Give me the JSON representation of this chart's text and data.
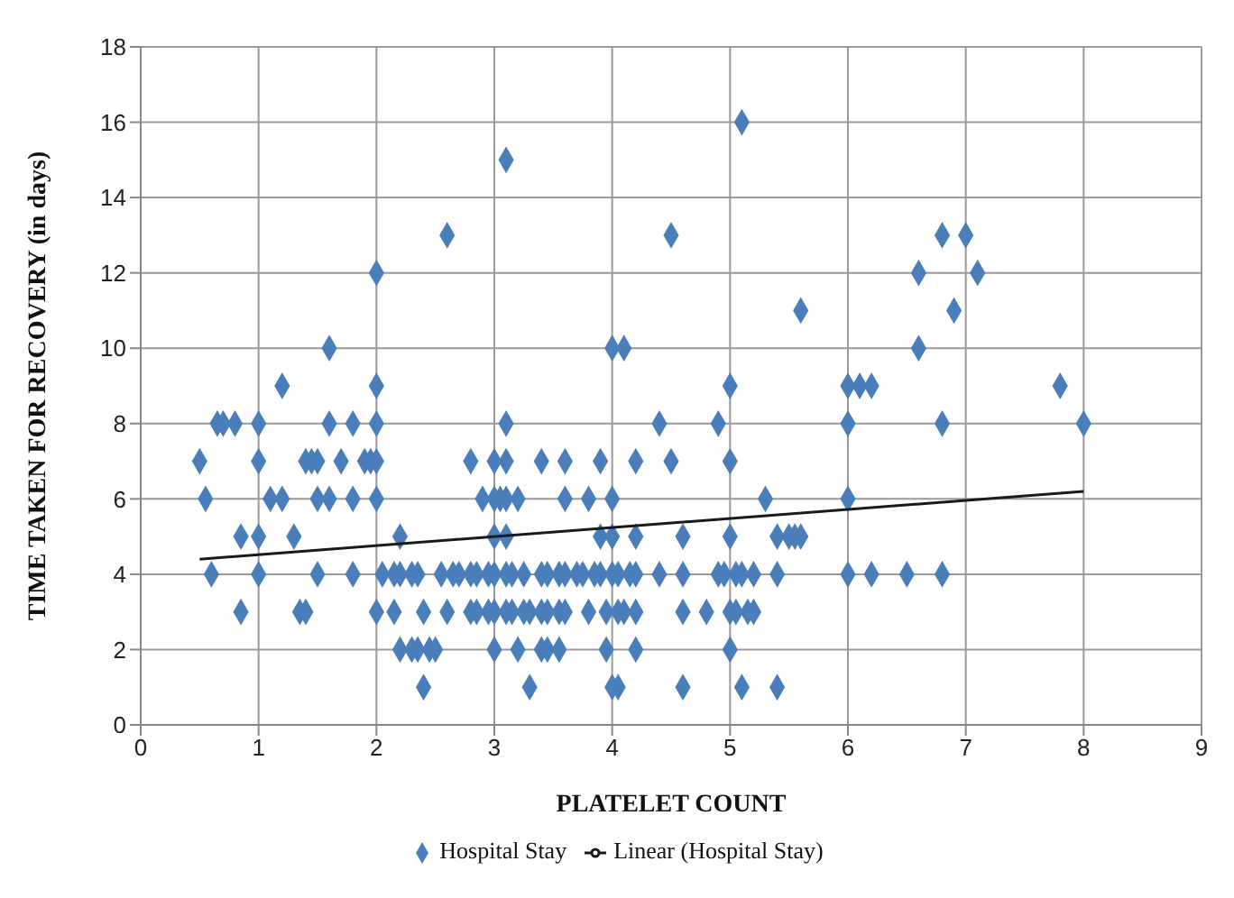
{
  "chart_data": {
    "type": "scatter",
    "xlabel": "PLATELET COUNT",
    "ylabel": "TIME TAKEN FOR RECOVERY  (in days)",
    "xlim": [
      0,
      9
    ],
    "xticks": [
      0,
      1,
      2,
      3,
      4,
      5,
      6,
      7,
      8,
      9
    ],
    "ylim": [
      0,
      18
    ],
    "yticks": [
      0,
      2,
      4,
      6,
      8,
      10,
      12,
      14,
      16,
      18
    ],
    "grid": true,
    "legend": "bottom",
    "series": [
      {
        "name": "Hospital Stay",
        "marker": "diamond",
        "color": "#4a7ebb",
        "x": [
          5.1,
          3.1,
          2.6,
          4.5,
          6.8,
          7.0,
          2.0,
          6.6,
          7.1,
          5.6,
          6.9,
          1.6,
          4.0,
          4.1,
          6.6,
          1.2,
          2.0,
          5.0,
          6.0,
          6.1,
          6.2,
          7.8,
          0.65,
          0.7,
          0.8,
          1.0,
          1.6,
          1.8,
          2.0,
          3.1,
          4.4,
          4.9,
          6.0,
          6.8,
          8.0,
          0.5,
          1.0,
          1.4,
          1.45,
          1.5,
          1.7,
          1.9,
          1.95,
          2.0,
          2.8,
          3.0,
          3.1,
          3.4,
          3.6,
          3.9,
          4.2,
          4.5,
          5.0,
          0.55,
          1.1,
          1.2,
          1.5,
          1.6,
          1.8,
          2.0,
          2.9,
          3.0,
          3.05,
          3.1,
          3.2,
          3.6,
          3.8,
          4.0,
          5.3,
          6.0,
          0.85,
          1.0,
          1.3,
          2.2,
          3.0,
          3.1,
          3.9,
          4.0,
          4.2,
          4.6,
          5.0,
          5.4,
          5.5,
          5.55,
          5.6,
          0.6,
          1.0,
          1.5,
          1.8,
          2.05,
          2.15,
          2.2,
          2.3,
          2.35,
          2.55,
          2.65,
          2.7,
          2.8,
          2.85,
          2.95,
          3.0,
          3.1,
          3.15,
          3.25,
          3.4,
          3.45,
          3.55,
          3.6,
          3.7,
          3.75,
          3.85,
          3.9,
          4.0,
          4.05,
          4.15,
          4.2,
          4.4,
          4.6,
          4.9,
          4.95,
          5.05,
          5.1,
          5.2,
          5.4,
          6.0,
          6.2,
          6.5,
          6.8,
          0.85,
          1.35,
          1.4,
          2.0,
          2.15,
          2.4,
          2.6,
          2.8,
          2.85,
          2.95,
          3.0,
          3.1,
          3.15,
          3.25,
          3.3,
          3.4,
          3.45,
          3.55,
          3.6,
          3.8,
          3.95,
          4.05,
          4.1,
          4.2,
          4.6,
          4.8,
          5.0,
          5.05,
          5.15,
          5.2,
          2.2,
          2.3,
          2.35,
          2.45,
          2.5,
          3.0,
          3.2,
          3.4,
          3.45,
          3.55,
          3.95,
          4.2,
          5.0,
          2.4,
          3.3,
          4.0,
          4.05,
          4.6,
          5.1,
          5.4
        ],
        "values": [
          16,
          15,
          13,
          13,
          13,
          13,
          12,
          12,
          12,
          11,
          11,
          10,
          10,
          10,
          10,
          9,
          9,
          9,
          9,
          9,
          9,
          9,
          8,
          8,
          8,
          8,
          8,
          8,
          8,
          8,
          8,
          8,
          8,
          8,
          8,
          7,
          7,
          7,
          7,
          7,
          7,
          7,
          7,
          7,
          7,
          7,
          7,
          7,
          7,
          7,
          7,
          7,
          7,
          6,
          6,
          6,
          6,
          6,
          6,
          6,
          6,
          6,
          6,
          6,
          6,
          6,
          6,
          6,
          6,
          6,
          5,
          5,
          5,
          5,
          5,
          5,
          5,
          5,
          5,
          5,
          5,
          5,
          5,
          5,
          5,
          4,
          4,
          4,
          4,
          4,
          4,
          4,
          4,
          4,
          4,
          4,
          4,
          4,
          4,
          4,
          4,
          4,
          4,
          4,
          4,
          4,
          4,
          4,
          4,
          4,
          4,
          4,
          4,
          4,
          4,
          4,
          4,
          4,
          4,
          4,
          4,
          4,
          4,
          4,
          4,
          4,
          4,
          4,
          3,
          3,
          3,
          3,
          3,
          3,
          3,
          3,
          3,
          3,
          3,
          3,
          3,
          3,
          3,
          3,
          3,
          3,
          3,
          3,
          3,
          3,
          3,
          3,
          3,
          3,
          3,
          3,
          3,
          3,
          2,
          2,
          2,
          2,
          2,
          2,
          2,
          2,
          2,
          2,
          2,
          2,
          2,
          1,
          1,
          1,
          1,
          1,
          1,
          1
        ]
      },
      {
        "name": "Linear (Hospital Stay)",
        "type": "line",
        "marker": "none",
        "line_style": "solid",
        "color": "#1a1a1a",
        "x": [
          0.5,
          8
        ],
        "values": [
          4.4,
          6.2
        ]
      }
    ]
  }
}
